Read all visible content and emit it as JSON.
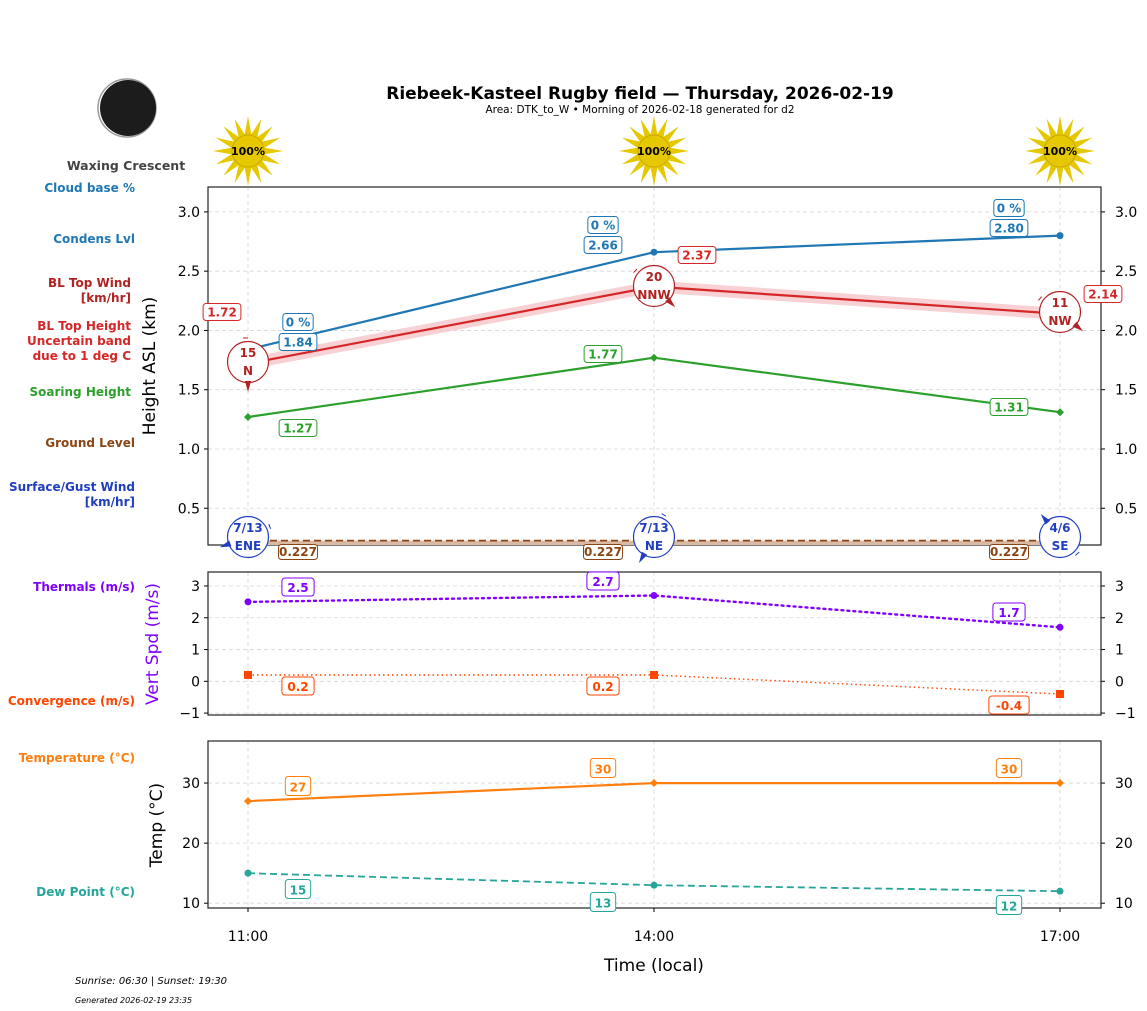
{
  "title": "Riebeek-Kasteel Rugby field — Thursday, 2026-02-19",
  "subtitle": "Area: DTK_to_W • Morning of 2026-02-18 generated for d2",
  "moon": {
    "phase": "Waxing Crescent",
    "icon": "moon-icon"
  },
  "sun_icons": [
    "100%",
    "100%",
    "100%"
  ],
  "footer": {
    "sun": "Sunrise: 06:30 | Sunset: 19:30",
    "generated": "Generated 2026-02-19 23:35"
  },
  "side_labels": {
    "cloud_base": "Cloud base %",
    "condens": "Condens Lvl",
    "bl_wind": [
      "BL Top Wind",
      "[km/hr]"
    ],
    "bl_top": [
      "BL Top Height",
      "Uncertain band",
      "due to 1 deg C"
    ],
    "soaring": "Soaring Height",
    "ground": "Ground Level",
    "surface_wind": [
      "Surface/Gust Wind",
      "[km/hr]"
    ],
    "thermals": "Thermals (m/s)",
    "convergence": "Convergence (m/s)",
    "temperature": "Temperature (°C)",
    "dew": "Dew Point (°C)"
  },
  "colors": {
    "cloud": "#1f77b4",
    "bl_wind": "#b22222",
    "bl_top": "#d62728",
    "band": "#f4c2c6",
    "soaring": "#2ca02c",
    "ground": "#8b4513",
    "surface_wind": "#1f3fbf",
    "thermals": "#8000ff",
    "convergence": "#ff4500",
    "temperature": "#ff7f0e",
    "dew": "#26a69a",
    "sun": "#e6c800"
  },
  "chart_data": [
    {
      "type": "line",
      "ylabel": "Height ASL (km)",
      "ylim": [
        0.19,
        3.21
      ],
      "yticks": [
        "0.5",
        "1.0",
        "1.5",
        "2.0",
        "2.5",
        "3.0"
      ],
      "ytick_values": [
        0.5,
        1.0,
        1.5,
        2.0,
        2.5,
        3.0
      ],
      "grid": true,
      "x": [
        "11:00",
        "14:00",
        "17:00"
      ],
      "series": [
        {
          "key": "condens",
          "values": [
            1.84,
            2.66,
            2.8
          ],
          "labels": [
            "1.84",
            "2.66",
            "2.80"
          ],
          "cloud_pct": [
            "0 %",
            "0 %",
            "0 %"
          ]
        },
        {
          "key": "bl_top",
          "values": [
            1.72,
            2.37,
            2.14
          ],
          "labels": [
            "1.72",
            "2.37",
            "2.14"
          ],
          "band": 0.05,
          "wind_speed": [
            "15",
            "20",
            "11"
          ],
          "wind_dir": [
            "N",
            "NNW",
            "NW"
          ]
        },
        {
          "key": "soaring",
          "values": [
            1.27,
            1.77,
            1.31
          ],
          "labels": [
            "1.27",
            "1.77",
            "1.31"
          ]
        },
        {
          "key": "ground",
          "values": [
            0.227,
            0.227,
            0.227
          ],
          "labels": [
            "0.227",
            "0.227",
            "0.227"
          ],
          "surface_wind": [
            "7/13",
            "7/13",
            "4/6"
          ],
          "surface_dir": [
            "ENE",
            "NE",
            "SE"
          ]
        }
      ]
    },
    {
      "type": "line",
      "ylabel": "Vert Spd (m/s)",
      "ylim": [
        -1.06,
        3.44
      ],
      "yticks": [
        "−1",
        "0",
        "1",
        "2",
        "3"
      ],
      "ytick_values": [
        -1,
        0,
        1,
        2,
        3
      ],
      "grid": true,
      "x": [
        "11:00",
        "14:00",
        "17:00"
      ],
      "series": [
        {
          "key": "thermals",
          "values": [
            2.5,
            2.7,
            1.7
          ],
          "labels": [
            "2.5",
            "2.7",
            "1.7"
          ]
        },
        {
          "key": "convergence",
          "values": [
            0.2,
            0.2,
            -0.4
          ],
          "labels": [
            "0.2",
            "0.2",
            "-0.4"
          ]
        }
      ]
    },
    {
      "type": "line",
      "ylabel": "Temp (°C)",
      "xlabel": "Time (local)",
      "ylim": [
        9.2,
        37
      ],
      "yticks": [
        "10",
        "20",
        "30"
      ],
      "ytick_values": [
        10,
        20,
        30
      ],
      "grid": true,
      "x": [
        "11:00",
        "14:00",
        "17:00"
      ],
      "xticks": [
        "11:00",
        "14:00",
        "17:00"
      ],
      "series": [
        {
          "key": "temperature",
          "values": [
            27,
            30,
            30
          ],
          "labels": [
            "27",
            "30",
            "30"
          ]
        },
        {
          "key": "dew",
          "values": [
            15,
            13,
            12
          ],
          "labels": [
            "15",
            "13",
            "12"
          ]
        }
      ]
    }
  ]
}
